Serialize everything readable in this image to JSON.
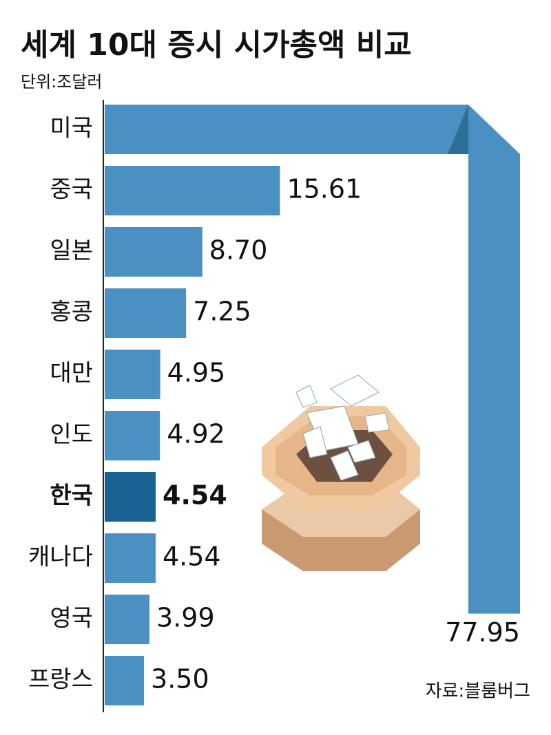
{
  "chart_data": {
    "type": "bar",
    "orientation": "horizontal",
    "title": "세계 10대 증시 시가총액 비교",
    "subtitle": "단위:조달러",
    "source": "자료:블룸버그",
    "categories": [
      "미국",
      "중국",
      "일본",
      "홍콩",
      "대만",
      "인도",
      "한국",
      "캐나다",
      "영국",
      "프랑스"
    ],
    "values": [
      77.95,
      15.61,
      8.7,
      7.25,
      4.95,
      4.92,
      4.54,
      4.54,
      3.99,
      3.5
    ],
    "value_labels": [
      "77.95",
      "15.61",
      "8.70",
      "7.25",
      "4.95",
      "4.92",
      "4.54",
      "4.54",
      "3.99",
      "3.50"
    ],
    "colors": [
      "#4a90c2",
      "#4a90c2",
      "#4a90c2",
      "#4a90c2",
      "#4a90c2",
      "#4a90c2",
      "#1a6194",
      "#4a90c2",
      "#4a90c2",
      "#4a90c2"
    ]
  }
}
